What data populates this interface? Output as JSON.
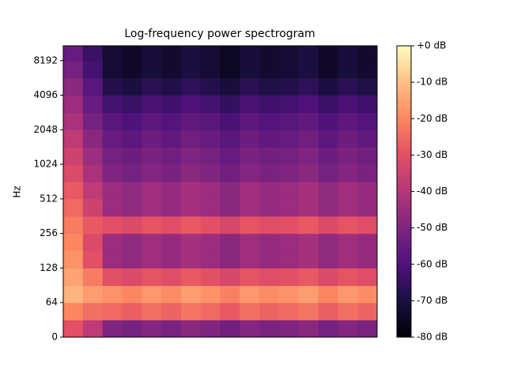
{
  "chart_data": {
    "type": "spectrogram",
    "title": "Log-frequency power spectrogram",
    "y_label": "Hz",
    "yscale": "symlog",
    "linthresh": 64,
    "ylim": [
      0,
      11025
    ],
    "yticks": [
      0,
      64,
      128,
      256,
      512,
      1024,
      2048,
      4096,
      8192
    ],
    "y_edges": [
      0,
      32,
      64,
      90,
      128,
      181,
      256,
      362,
      512,
      724,
      1024,
      1448,
      2048,
      2896,
      4096,
      5793,
      8192,
      11025
    ],
    "cmap": "magma",
    "clim": [
      -80,
      0
    ],
    "colorbar_ticks": [
      {
        "value": 0,
        "label": "+0 dB"
      },
      {
        "value": -10,
        "label": "-10 dB"
      },
      {
        "value": -20,
        "label": "-20 dB"
      },
      {
        "value": -30,
        "label": "-30 dB"
      },
      {
        "value": -40,
        "label": "-40 dB"
      },
      {
        "value": -50,
        "label": "-50 dB"
      },
      {
        "value": -60,
        "label": "-60 dB"
      },
      {
        "value": -70,
        "label": "-70 dB"
      },
      {
        "value": -80,
        "label": "-80 dB"
      }
    ],
    "values": [
      [
        -30,
        -38,
        -50,
        -52,
        -49,
        -51,
        -48,
        -50,
        -53,
        -49,
        -51,
        -50,
        -48,
        -52,
        -49,
        -51
      ],
      [
        -20,
        -24,
        -25,
        -27,
        -24,
        -26,
        -23,
        -25,
        -28,
        -24,
        -26,
        -25,
        -23,
        -27,
        -24,
        -26
      ],
      [
        -12,
        -16,
        -18,
        -20,
        -17,
        -19,
        -16,
        -18,
        -21,
        -17,
        -19,
        -18,
        -16,
        -20,
        -17,
        -19
      ],
      [
        -15,
        -22,
        -30,
        -32,
        -29,
        -31,
        -28,
        -30,
        -33,
        -29,
        -31,
        -30,
        -28,
        -32,
        -29,
        -31
      ],
      [
        -18,
        -30,
        -45,
        -47,
        -44,
        -46,
        -43,
        -45,
        -48,
        -44,
        -46,
        -45,
        -43,
        -47,
        -44,
        -46
      ],
      [
        -20,
        -32,
        -45,
        -47,
        -44,
        -46,
        -43,
        -45,
        -48,
        -44,
        -46,
        -45,
        -43,
        -47,
        -44,
        -46
      ],
      [
        -22,
        -28,
        -30,
        -32,
        -29,
        -31,
        -28,
        -30,
        -33,
        -29,
        -31,
        -30,
        -28,
        -32,
        -29,
        -31
      ],
      [
        -25,
        -35,
        -45,
        -47,
        -44,
        -46,
        -43,
        -45,
        -48,
        -44,
        -46,
        -45,
        -43,
        -47,
        -44,
        -46
      ],
      [
        -28,
        -38,
        -45,
        -47,
        -44,
        -46,
        -43,
        -45,
        -48,
        -44,
        -46,
        -45,
        -43,
        -47,
        -44,
        -46
      ],
      [
        -32,
        -42,
        -50,
        -52,
        -49,
        -51,
        -48,
        -50,
        -53,
        -49,
        -51,
        -50,
        -48,
        -52,
        -49,
        -51
      ],
      [
        -35,
        -45,
        -52,
        -54,
        -51,
        -53,
        -50,
        -52,
        -55,
        -51,
        -53,
        -52,
        -50,
        -54,
        -51,
        -53
      ],
      [
        -38,
        -48,
        -55,
        -57,
        -54,
        -56,
        -53,
        -55,
        -58,
        -54,
        -56,
        -55,
        -53,
        -57,
        -54,
        -56
      ],
      [
        -42,
        -52,
        -58,
        -60,
        -57,
        -59,
        -56,
        -58,
        -61,
        -57,
        -59,
        -58,
        -56,
        -60,
        -57,
        -59
      ],
      [
        -45,
        -55,
        -62,
        -64,
        -61,
        -63,
        -60,
        -62,
        -65,
        -61,
        -63,
        -62,
        -60,
        -64,
        -61,
        -63
      ],
      [
        -48,
        -58,
        -68,
        -70,
        -67,
        -69,
        -66,
        -68,
        -71,
        -67,
        -69,
        -68,
        -66,
        -70,
        -67,
        -69
      ],
      [
        -52,
        -62,
        -72,
        -74,
        -71,
        -73,
        -70,
        -72,
        -75,
        -71,
        -73,
        -72,
        -70,
        -74,
        -71,
        -73
      ],
      [
        -55,
        -64,
        -72,
        -74,
        -71,
        -73,
        -70,
        -72,
        -75,
        -71,
        -73,
        -72,
        -70,
        -74,
        -71,
        -73
      ]
    ]
  }
}
